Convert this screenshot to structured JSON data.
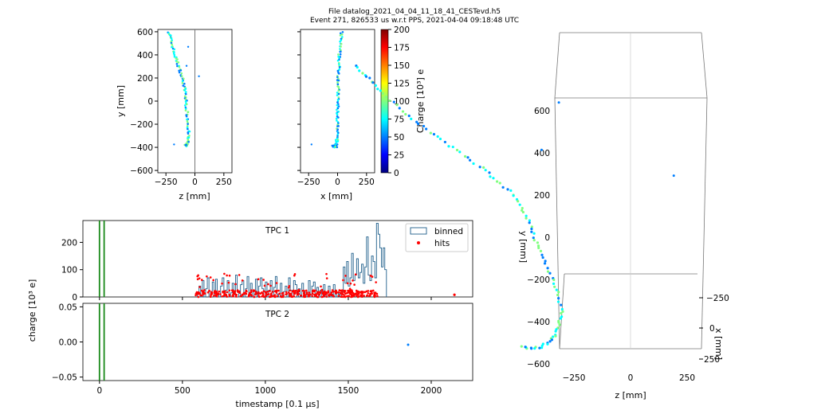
{
  "header": {
    "line1": "File datalog_2021_04_04_11_18_41_CESTevd.h5",
    "line2": "Event 271, 826533 us w.r.t PPS, 2021-04-04 09:18:48 UTC"
  },
  "colormap": [
    "#00007f",
    "#0000ff",
    "#007fff",
    "#00ffff",
    "#7fff7f",
    "#ffff00",
    "#ff7f00",
    "#ff0000",
    "#7f0000"
  ],
  "chart_data": [
    {
      "type": "scatter",
      "panel": "zy",
      "xlabel": "z [mm]",
      "ylabel": "y [mm]",
      "xlim": [
        -320,
        320
      ],
      "ylim": [
        -620,
        620
      ],
      "xticks": [
        -250,
        0,
        250
      ],
      "yticks": [
        -600,
        -400,
        -200,
        0,
        200,
        400,
        600
      ],
      "vline": 0,
      "track": [
        [
          -222,
          600
        ],
        [
          -205,
          520
        ],
        [
          -180,
          420
        ],
        [
          -150,
          330
        ],
        [
          -120,
          240
        ],
        [
          -95,
          150
        ],
        [
          -82,
          60
        ],
        [
          -75,
          -40
        ],
        [
          -62,
          -150
        ],
        [
          -55,
          -260
        ],
        [
          -60,
          -340
        ],
        [
          -72,
          -385
        ],
        [
          -90,
          -385
        ]
      ],
      "outliers": [
        [
          -58,
          470
        ],
        [
          -72,
          305
        ],
        [
          35,
          215
        ],
        [
          -180,
          -375
        ]
      ]
    },
    {
      "type": "scatter",
      "panel": "xy",
      "xlabel": "x [mm]",
      "xlim": [
        -320,
        320
      ],
      "ylim": [
        -620,
        620
      ],
      "xticks": [
        -250,
        0,
        250
      ],
      "yticks": [
        -600,
        -400,
        -200,
        0,
        200,
        400,
        600
      ],
      "track": [
        [
          35,
          600
        ],
        [
          25,
          500
        ],
        [
          15,
          400
        ],
        [
          12,
          300
        ],
        [
          8,
          200
        ],
        [
          5,
          100
        ],
        [
          2,
          0
        ],
        [
          0,
          -100
        ],
        [
          -2,
          -200
        ],
        [
          -4,
          -300
        ],
        [
          -8,
          -370
        ],
        [
          -40,
          -390
        ],
        [
          -5,
          -395
        ]
      ],
      "outliers": [
        [
          -225,
          -375
        ]
      ]
    },
    {
      "type": "colorbar",
      "label": "Charge [10³] e",
      "range": [
        0,
        200
      ],
      "ticks": [
        0,
        25,
        50,
        75,
        100,
        125,
        150,
        175,
        200
      ]
    },
    {
      "type": "histogram",
      "panel": "TPC 1",
      "ylabel": "charge [10³ e]",
      "xlim": [
        -100,
        2250
      ],
      "ylim": [
        0,
        280
      ],
      "yticks": [
        0,
        100,
        200
      ],
      "xticks": [
        0,
        500,
        1000,
        1500,
        2000
      ],
      "series": [
        {
          "name": "binned"
        },
        {
          "name": "hits"
        }
      ],
      "trigger_lines": [
        0,
        28
      ],
      "bins_x_start": 590,
      "bin_width": 10,
      "bin_values": [
        10,
        40,
        0,
        60,
        0,
        30,
        70,
        0,
        20,
        55,
        0,
        65,
        10,
        0,
        40,
        70,
        0,
        25,
        60,
        0,
        15,
        50,
        0,
        80,
        20,
        0,
        45,
        60,
        0,
        30,
        75,
        0,
        50,
        0,
        20,
        65,
        0,
        40,
        70,
        30,
        0,
        55,
        0,
        25,
        60,
        0,
        35,
        75,
        10,
        0,
        50,
        0,
        20,
        40,
        0,
        70,
        25,
        0,
        60,
        45,
        0,
        30,
        0,
        50,
        20,
        0,
        10,
        60,
        0,
        40,
        55,
        10,
        35,
        0,
        25,
        0,
        45,
        0,
        15,
        40,
        0,
        10,
        45,
        0,
        15,
        10,
        0,
        20,
        110,
        50,
        130,
        40,
        70,
        160,
        60,
        80,
        140,
        70,
        90,
        120,
        50,
        110,
        220,
        80,
        60,
        150,
        130,
        70,
        270,
        230,
        180,
        110,
        180,
        100
      ],
      "hits_min_x": 580,
      "hits_max_x": 1680,
      "isolated_hit": [
        2140,
        8
      ]
    },
    {
      "type": "histogram",
      "panel": "TPC 2",
      "xlabel": "timestamp [0.1 μs]",
      "xlim": [
        -100,
        2250
      ],
      "ylim": [
        -0.055,
        0.055
      ],
      "yticks": [
        0.05,
        0.0,
        -0.05
      ],
      "ytick_labels": [
        "0.05",
        "0.00",
        "−0.05"
      ],
      "xticks": [
        0,
        500,
        1000,
        1500,
        2000
      ],
      "trigger_lines": [
        0,
        28
      ]
    },
    {
      "type": "scatter3d",
      "panel": "3d",
      "xlabel": "z [mm]",
      "ylabel": "y [mm]",
      "zlabel": "x [mm]",
      "zticks": [
        -250,
        0,
        250
      ],
      "yticks": [
        -600,
        -400,
        -200,
        0,
        200,
        400,
        600
      ],
      "xticks": [
        250,
        0,
        -250
      ],
      "track": [
        [
          -222,
          600
        ],
        [
          -205,
          520
        ],
        [
          -180,
          420
        ],
        [
          -150,
          330
        ],
        [
          -120,
          240
        ],
        [
          -95,
          150
        ],
        [
          -82,
          60
        ],
        [
          -75,
          -40
        ],
        [
          -62,
          -150
        ],
        [
          -55,
          -260
        ],
        [
          -60,
          -340
        ],
        [
          -72,
          -385
        ],
        [
          -90,
          -385
        ]
      ],
      "outliers": [
        [
          -58,
          470
        ],
        [
          -72,
          305
        ],
        [
          35,
          215
        ],
        [
          -180,
          -375
        ]
      ]
    }
  ]
}
